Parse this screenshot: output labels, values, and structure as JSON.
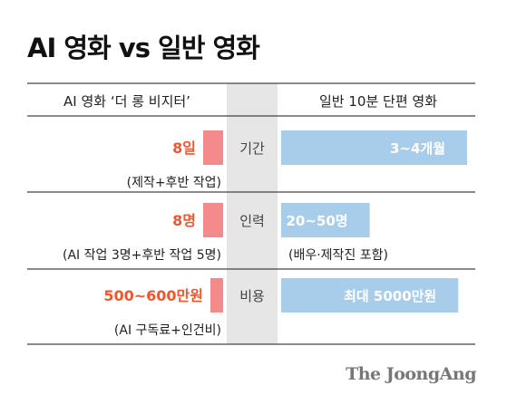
{
  "title": "AI 영화 vs 일반 영화",
  "brand": "The JoongAng",
  "colors": {
    "ai_bar": "#f48b8b",
    "ai_value": "#f0562b",
    "movie_bar": "#a8cdeb",
    "center_band": "#e6e6e6",
    "rule": "#444444"
  },
  "chart_data": {
    "type": "bar",
    "layout": "back-to-back horizontal bars",
    "series": [
      {
        "name": "AI 영화 ‘더 롱 비지터’",
        "values": [
          8,
          8,
          2
        ],
        "value_labels": [
          "8일",
          "8명",
          "500~600만원"
        ],
        "notes": [
          "(제작+후반 작업)",
          "(AI 작업 3명+후반 작업 5명)",
          "(AI 구독료+인건비)"
        ]
      },
      {
        "name": "일반 10분 단편 영화",
        "values": [
          105,
          50,
          100
        ],
        "value_labels": [
          "3~4개월",
          "20~50명",
          "최대 5000만원"
        ],
        "notes": [
          "",
          "(배우·제작진 포함)",
          ""
        ]
      }
    ],
    "categories": [
      "기간",
      "인력",
      "비용"
    ],
    "x_relative_max": [
      105,
      50,
      100
    ]
  }
}
